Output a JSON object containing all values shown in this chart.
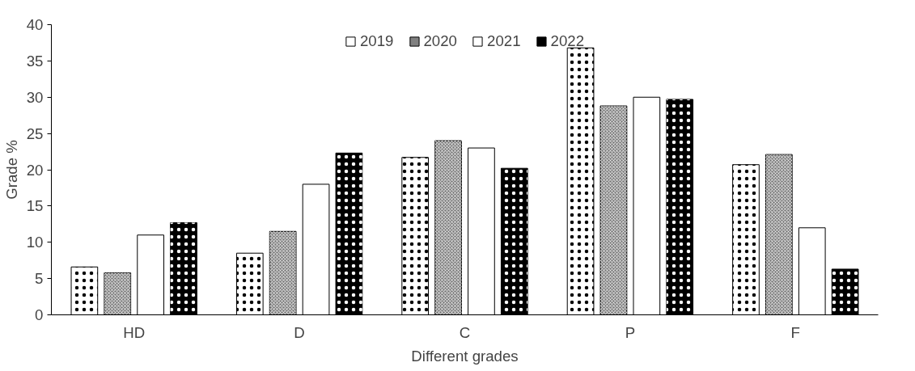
{
  "chart_data": {
    "type": "bar",
    "xlabel": "Different grades",
    "ylabel": "Grade %",
    "categories": [
      "HD",
      "D",
      "C",
      "P",
      "F"
    ],
    "series": [
      {
        "name": "2019",
        "color": "#ffffff",
        "values": [
          6.6,
          8.5,
          21.7,
          36.8,
          20.7
        ]
      },
      {
        "name": "2020",
        "color": "#808080",
        "values": [
          5.8,
          11.5,
          24,
          28.8,
          22.1
        ]
      },
      {
        "name": "2021",
        "color": "#ffffff",
        "values": [
          11,
          18,
          23,
          30,
          12
        ]
      },
      {
        "name": "2022",
        "color": "#000000",
        "values": [
          12.7,
          22.3,
          20.2,
          29.7,
          6.3
        ]
      }
    ],
    "ylim": [
      0,
      40
    ],
    "yticks": [
      0,
      5,
      10,
      15,
      20,
      25,
      30,
      35,
      40
    ],
    "grid": false,
    "legend": "top"
  }
}
